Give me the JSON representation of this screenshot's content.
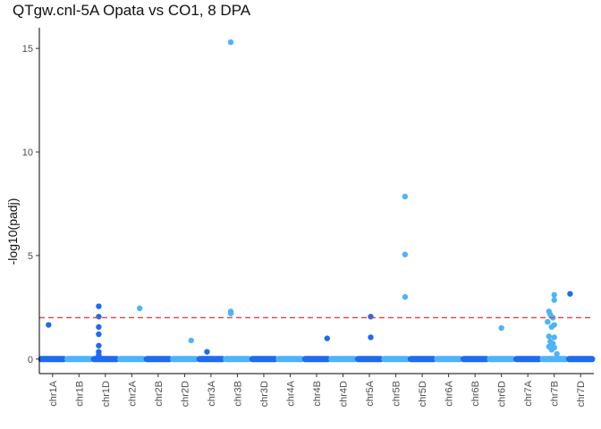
{
  "chart_data": {
    "type": "scatter",
    "title": "QTgw.cnl-5A Opata vs CO1, 8 DPA",
    "xlabel": "",
    "ylabel": "-log10(padj)",
    "ylim": [
      -0.7,
      16.0
    ],
    "yticks": [
      0,
      5,
      10,
      15
    ],
    "threshold": {
      "value": 2.0,
      "color": "#e8413a",
      "style": "dashed"
    },
    "grid": false,
    "legend": "none",
    "colors": {
      "dark": "#1f6bf0",
      "light": "#4db4f7",
      "axis": "#000000"
    },
    "categories": [
      "chr1A",
      "chr1B",
      "chr1D",
      "chr2A",
      "chr2B",
      "chr2D",
      "chr3A",
      "chr3B",
      "chr3D",
      "chr4A",
      "chr4B",
      "chr4D",
      "chr5A",
      "chr5B",
      "chr5D",
      "chr6A",
      "chr6B",
      "chr6D",
      "chr7A",
      "chr7B",
      "chr7D"
    ],
    "points": [
      {
        "x": "chr1A",
        "offset": 0.35,
        "y": 1.65
      },
      {
        "x": "chr1D",
        "offset": 0.25,
        "y": 2.55
      },
      {
        "x": "chr1D",
        "offset": 0.25,
        "y": 2.05
      },
      {
        "x": "chr1D",
        "offset": 0.25,
        "y": 1.55
      },
      {
        "x": "chr1D",
        "offset": 0.25,
        "y": 1.2
      },
      {
        "x": "chr1D",
        "offset": 0.25,
        "y": 0.65
      },
      {
        "x": "chr1D",
        "offset": 0.25,
        "y": 0.35
      },
      {
        "x": "chr1D",
        "offset": 0.25,
        "y": 0.2
      },
      {
        "x": "chr2A",
        "offset": 0.8,
        "y": 2.45
      },
      {
        "x": "chr2D",
        "offset": 0.75,
        "y": 0.9
      },
      {
        "x": "chr3A",
        "offset": 0.35,
        "y": 0.35
      },
      {
        "x": "chr3B",
        "offset": 0.25,
        "y": 15.3
      },
      {
        "x": "chr3B",
        "offset": 0.25,
        "y": 2.3
      },
      {
        "x": "chr3B",
        "offset": 0.25,
        "y": 2.2
      },
      {
        "x": "chr4B",
        "offset": 0.9,
        "y": 1.0
      },
      {
        "x": "chr5A",
        "offset": 0.55,
        "y": 2.05
      },
      {
        "x": "chr5A",
        "offset": 0.55,
        "y": 1.05
      },
      {
        "x": "chr5B",
        "offset": 0.85,
        "y": 7.85
      },
      {
        "x": "chr5B",
        "offset": 0.85,
        "y": 5.05
      },
      {
        "x": "chr5B",
        "offset": 0.85,
        "y": 3.0
      },
      {
        "x": "chr6D",
        "offset": 0.5,
        "y": 1.5
      },
      {
        "x": "chr7B",
        "offset": 0.3,
        "y": 2.3
      },
      {
        "x": "chr7B",
        "offset": 0.35,
        "y": 2.15
      },
      {
        "x": "chr7B",
        "offset": 0.5,
        "y": 3.1
      },
      {
        "x": "chr7B",
        "offset": 0.5,
        "y": 2.85
      },
      {
        "x": "chr7B",
        "offset": 0.45,
        "y": 2.0
      },
      {
        "x": "chr7B",
        "offset": 0.25,
        "y": 1.8
      },
      {
        "x": "chr7B",
        "offset": 0.5,
        "y": 1.65
      },
      {
        "x": "chr7B",
        "offset": 0.4,
        "y": 1.55
      },
      {
        "x": "chr7B",
        "offset": 0.3,
        "y": 1.1
      },
      {
        "x": "chr7B",
        "offset": 0.5,
        "y": 1.05
      },
      {
        "x": "chr7B",
        "offset": 0.35,
        "y": 0.85
      },
      {
        "x": "chr7B",
        "offset": 0.45,
        "y": 0.75
      },
      {
        "x": "chr7B",
        "offset": 0.3,
        "y": 0.6
      },
      {
        "x": "chr7B",
        "offset": 0.5,
        "y": 0.55
      },
      {
        "x": "chr7B",
        "offset": 0.4,
        "y": 0.45
      },
      {
        "x": "chr7B",
        "offset": 0.6,
        "y": 0.25
      },
      {
        "x": "chr7D",
        "offset": 0.1,
        "y": 3.15
      }
    ]
  }
}
